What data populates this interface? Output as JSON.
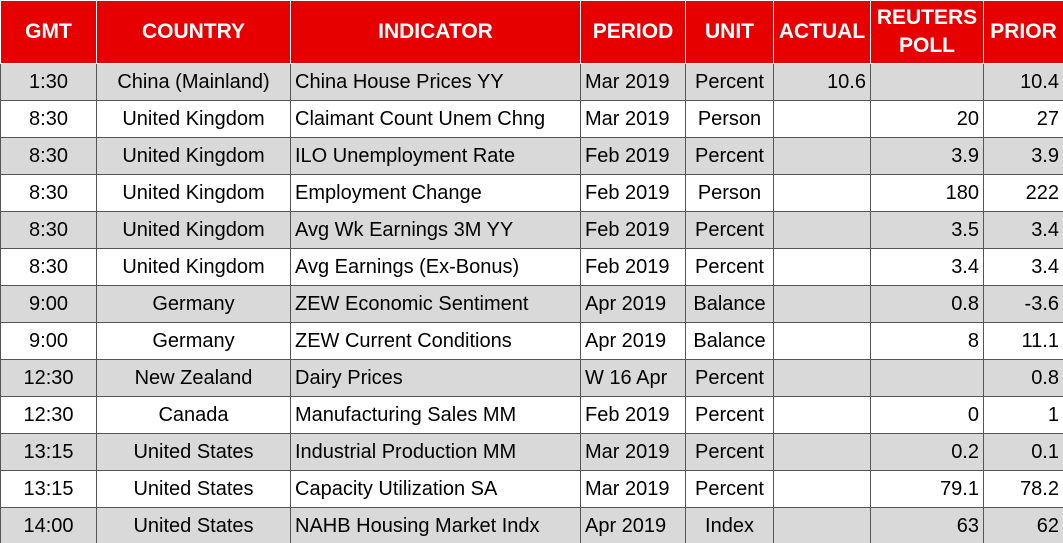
{
  "table": {
    "header": [
      "GMT",
      "COUNTRY",
      "INDICATOR",
      "PERIOD",
      "UNIT",
      "ACTUAL",
      "REUTERS POLL",
      "PRIOR"
    ],
    "rows": [
      [
        "1:30",
        "China (Mainland)",
        "China House Prices YY",
        "Mar 2019",
        "Percent",
        "10.6",
        null,
        "10.4"
      ],
      [
        "8:30",
        "United Kingdom",
        "Claimant Count Unem Chng",
        "Mar 2019",
        "Person",
        null,
        "20",
        "27"
      ],
      [
        "8:30",
        "United Kingdom",
        "ILO Unemployment Rate",
        "Feb 2019",
        "Percent",
        null,
        "3.9",
        "3.9"
      ],
      [
        "8:30",
        "United Kingdom",
        "Employment Change",
        "Feb 2019",
        "Person",
        null,
        "180",
        "222"
      ],
      [
        "8:30",
        "United Kingdom",
        "Avg Wk Earnings 3M YY",
        "Feb 2019",
        "Percent",
        null,
        "3.5",
        "3.4"
      ],
      [
        "8:30",
        "United Kingdom",
        "Avg Earnings (Ex-Bonus)",
        "Feb 2019",
        "Percent",
        null,
        "3.4",
        "3.4"
      ],
      [
        "9:00",
        "Germany",
        "ZEW Economic Sentiment",
        "Apr 2019",
        "Balance",
        null,
        "0.8",
        "-3.6"
      ],
      [
        "9:00",
        "Germany",
        "ZEW Current Conditions",
        "Apr 2019",
        "Balance",
        null,
        "8",
        "11.1"
      ],
      [
        "12:30",
        "New Zealand",
        "Dairy Prices",
        "W 16 Apr",
        "Percent",
        null,
        null,
        "0.8"
      ],
      [
        "12:30",
        "Canada",
        "Manufacturing Sales MM",
        "Feb 2019",
        "Percent",
        null,
        "0",
        "1"
      ],
      [
        "13:15",
        "United States",
        "Industrial Production MM",
        "Mar 2019",
        "Percent",
        null,
        "0.2",
        "0.1"
      ],
      [
        "13:15",
        "United States",
        "Capacity Utilization SA",
        "Mar 2019",
        "Percent",
        null,
        "79.1",
        "78.2"
      ],
      [
        "14:00",
        "United States",
        "NAHB Housing Market Indx",
        "Apr 2019",
        "Index",
        null,
        "63",
        "62"
      ]
    ]
  }
}
